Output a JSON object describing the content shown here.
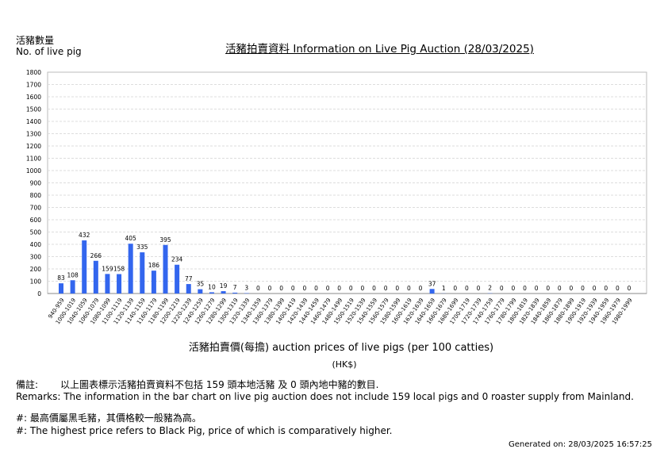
{
  "header": {
    "ylabel_zh": "活豬數量",
    "ylabel_en": "No. of live pig",
    "title": "活豬拍賣資料 Information on Live Pig Auction (28/03/2025)"
  },
  "chart_data": {
    "type": "bar",
    "title": "活豬拍賣資料 Information on Live Pig Auction (28/03/2025)",
    "ylabel": "活豬數量 No. of live pig",
    "xlabel": "活豬拍賣價(每擔) auction prices of live pigs (per 100 catties)",
    "xunit": "(HK$)",
    "ylim": [
      0,
      1800
    ],
    "ytick_step": 100,
    "grid": true,
    "bar_color": "#3366ee",
    "categories": [
      "940-959",
      "1000-1019",
      "1040-1059",
      "1060-1079",
      "1080-1099",
      "1100-1119",
      "1120-1139",
      "1140-1159",
      "1160-1179",
      "1180-1199",
      "1200-1219",
      "1220-1239",
      "1240-1259",
      "1260-1279",
      "1280-1299",
      "1300-1319",
      "1320-1339",
      "1340-1359",
      "1360-1379",
      "1380-1399",
      "1400-1419",
      "1420-1439",
      "1440-1459",
      "1460-1479",
      "1480-1499",
      "1500-1519",
      "1520-1539",
      "1540-1559",
      "1560-1579",
      "1580-1599",
      "1600-1619",
      "1620-1639",
      "1640-1659",
      "1660-1679",
      "1680-1699",
      "1700-1719",
      "1720-1739",
      "1740-1759",
      "1760-1779",
      "1780-1799",
      "1800-1819",
      "1820-1839",
      "1840-1859",
      "1860-1879",
      "1880-1899",
      "1900-1919",
      "1920-1939",
      "1940-1959",
      "1960-1979",
      "1980-1999"
    ],
    "values": [
      83,
      108,
      432,
      266,
      159,
      158,
      405,
      335,
      186,
      395,
      234,
      77,
      35,
      10,
      19,
      7,
      3,
      0,
      0,
      0,
      0,
      0,
      0,
      0,
      0,
      0,
      0,
      0,
      0,
      0,
      0,
      0,
      37,
      1,
      0,
      0,
      0,
      2,
      0,
      0,
      0,
      0,
      0,
      0,
      0,
      0,
      0,
      0,
      0,
      0
    ]
  },
  "remarks": {
    "label": "備註:",
    "zh": "以上圖表標示活豬拍賣資料不包括 159 頭本地活豬 及 0 頭內地中豬的數目.",
    "en": "Remarks: The information in the bar chart on live pig auction does not include 159 local pigs and 0 roaster supply from Mainland.",
    "note_zh": "#: 最高價屬黑毛豬，其價格較一般豬為高。",
    "note_en": "#: The highest price refers to Black Pig, price of which is comparatively higher."
  },
  "footer": {
    "generated": "Generated on: 28/03/2025 16:57:25"
  }
}
